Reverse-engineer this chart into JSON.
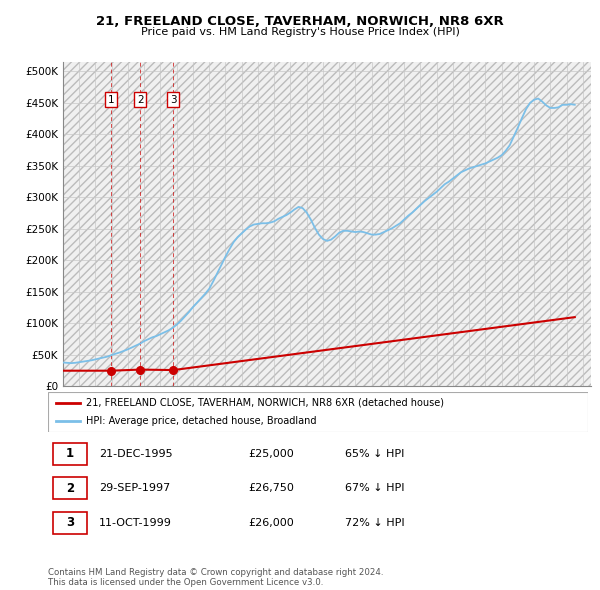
{
  "title": "21, FREELAND CLOSE, TAVERHAM, NORWICH, NR8 6XR",
  "subtitle": "Price paid vs. HM Land Registry's House Price Index (HPI)",
  "yticks": [
    0,
    50000,
    100000,
    150000,
    200000,
    250000,
    300000,
    350000,
    400000,
    450000,
    500000
  ],
  "ytick_labels": [
    "£0",
    "£50K",
    "£100K",
    "£150K",
    "£200K",
    "£250K",
    "£300K",
    "£350K",
    "£400K",
    "£450K",
    "£500K"
  ],
  "xlim_start": 1993.0,
  "xlim_end": 2025.5,
  "ylim_min": 0,
  "ylim_max": 515000,
  "hpi_color": "#7bbfe8",
  "price_color": "#cc0000",
  "grid_color": "#c8c8c8",
  "sale_dates": [
    1995.97,
    1997.75,
    1999.79
  ],
  "sale_prices": [
    25000,
    26750,
    26000
  ],
  "sale_labels": [
    "1",
    "2",
    "3"
  ],
  "legend_label_price": "21, FREELAND CLOSE, TAVERHAM, NORWICH, NR8 6XR (detached house)",
  "legend_label_hpi": "HPI: Average price, detached house, Broadland",
  "table_rows": [
    [
      "1",
      "21-DEC-1995",
      "£25,000",
      "65% ↓ HPI"
    ],
    [
      "2",
      "29-SEP-1997",
      "£26,750",
      "67% ↓ HPI"
    ],
    [
      "3",
      "11-OCT-1999",
      "£26,000",
      "72% ↓ HPI"
    ]
  ],
  "footnote": "Contains HM Land Registry data © Crown copyright and database right 2024.\nThis data is licensed under the Open Government Licence v3.0.",
  "hpi_x": [
    1993.0,
    1993.25,
    1993.5,
    1993.75,
    1994.0,
    1994.25,
    1994.5,
    1994.75,
    1995.0,
    1995.25,
    1995.5,
    1995.75,
    1996.0,
    1996.25,
    1996.5,
    1996.75,
    1997.0,
    1997.25,
    1997.5,
    1997.75,
    1998.0,
    1998.25,
    1998.5,
    1998.75,
    1999.0,
    1999.25,
    1999.5,
    1999.75,
    2000.0,
    2000.25,
    2000.5,
    2000.75,
    2001.0,
    2001.25,
    2001.5,
    2001.75,
    2002.0,
    2002.25,
    2002.5,
    2002.75,
    2003.0,
    2003.25,
    2003.5,
    2003.75,
    2004.0,
    2004.25,
    2004.5,
    2004.75,
    2005.0,
    2005.25,
    2005.5,
    2005.75,
    2006.0,
    2006.25,
    2006.5,
    2006.75,
    2007.0,
    2007.25,
    2007.5,
    2007.75,
    2008.0,
    2008.25,
    2008.5,
    2008.75,
    2009.0,
    2009.25,
    2009.5,
    2009.75,
    2010.0,
    2010.25,
    2010.5,
    2010.75,
    2011.0,
    2011.25,
    2011.5,
    2011.75,
    2012.0,
    2012.25,
    2012.5,
    2012.75,
    2013.0,
    2013.25,
    2013.5,
    2013.75,
    2014.0,
    2014.25,
    2014.5,
    2014.75,
    2015.0,
    2015.25,
    2015.5,
    2015.75,
    2016.0,
    2016.25,
    2016.5,
    2016.75,
    2017.0,
    2017.25,
    2017.5,
    2017.75,
    2018.0,
    2018.25,
    2018.5,
    2018.75,
    2019.0,
    2019.25,
    2019.5,
    2019.75,
    2020.0,
    2020.25,
    2020.5,
    2020.75,
    2021.0,
    2021.25,
    2021.5,
    2021.75,
    2022.0,
    2022.25,
    2022.5,
    2022.75,
    2023.0,
    2023.25,
    2023.5,
    2023.75,
    2024.0,
    2024.25,
    2024.5
  ],
  "hpi_y": [
    38000,
    37500,
    37000,
    37500,
    38500,
    39500,
    40500,
    41500,
    43000,
    44500,
    46000,
    47500,
    50000,
    52000,
    54000,
    56500,
    59000,
    62000,
    65000,
    68000,
    72000,
    75000,
    78000,
    80000,
    83000,
    86000,
    89000,
    93000,
    98000,
    104000,
    111000,
    118000,
    126000,
    133000,
    140000,
    147000,
    155000,
    167000,
    180000,
    193000,
    206000,
    218000,
    229000,
    237000,
    243000,
    249000,
    254000,
    257000,
    258000,
    259000,
    259000,
    260000,
    262000,
    266000,
    269000,
    272000,
    276000,
    281000,
    285000,
    283000,
    276000,
    265000,
    252000,
    241000,
    234000,
    231000,
    233000,
    238000,
    244000,
    247000,
    247000,
    246000,
    245000,
    246000,
    245000,
    243000,
    241000,
    241000,
    242000,
    245000,
    248000,
    251000,
    255000,
    259000,
    265000,
    271000,
    276000,
    282000,
    288000,
    294000,
    299000,
    304000,
    309000,
    315000,
    321000,
    325000,
    330000,
    335000,
    340000,
    343000,
    346000,
    348000,
    350000,
    352000,
    354000,
    357000,
    360000,
    363000,
    367000,
    374000,
    383000,
    397000,
    411000,
    426000,
    440000,
    450000,
    455000,
    457000,
    452000,
    446000,
    442000,
    442000,
    443000,
    447000,
    447000,
    448000,
    447000
  ],
  "price_line_x": [
    1993.0,
    1995.97,
    1995.97,
    1997.75,
    1997.75,
    1999.79,
    1999.79,
    2024.5
  ],
  "price_line_y": [
    25000,
    25000,
    25000,
    26750,
    26750,
    26000,
    26000,
    110000
  ]
}
